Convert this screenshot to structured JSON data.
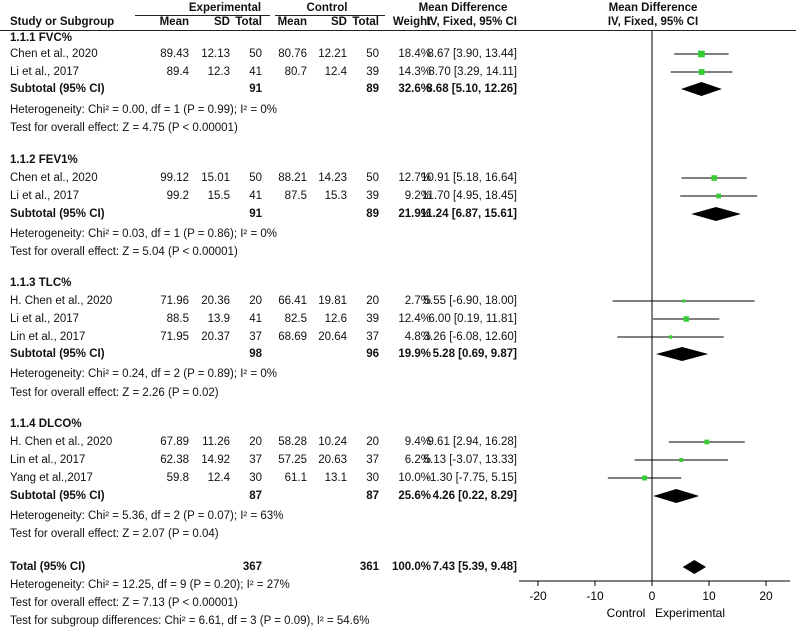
{
  "header": {
    "experimental": "Experimental",
    "control": "Control",
    "mean_difference": "Mean Difference",
    "mean_difference_plot": "Mean Difference",
    "study_col": "Study or Subgroup",
    "mean": "Mean",
    "sd": "SD",
    "total": "Total",
    "weight": "Weight",
    "method": "IV, Fixed, 95% CI",
    "method_plot": "IV, Fixed, 95% CI"
  },
  "subgroups": [
    {
      "title": "1.1.1 FVC%",
      "studies": [
        {
          "name": "Chen et al., 2020",
          "e_mean": "89.43",
          "e_sd": "12.13",
          "e_total": "50",
          "c_mean": "80.76",
          "c_sd": "12.21",
          "c_total": "50",
          "weight": "18.4%",
          "ci": "8.67 [3.90, 13.44]"
        },
        {
          "name": "Li et al., 2017",
          "e_mean": "89.4",
          "e_sd": "12.3",
          "e_total": "41",
          "c_mean": "80.7",
          "c_sd": "12.4",
          "c_total": "39",
          "weight": "14.3%",
          "ci": "8.70 [3.29, 14.11]"
        }
      ],
      "subtotal": {
        "label": "Subtotal (95% CI)",
        "e_total": "91",
        "c_total": "89",
        "weight": "32.6%",
        "ci": "8.68 [5.10, 12.26]"
      },
      "heterogeneity": "Heterogeneity: Chi² = 0.00, df = 1 (P = 0.99); I² = 0%",
      "overall": "Test for overall effect: Z = 4.75 (P < 0.00001)"
    },
    {
      "title": "1.1.2 FEV1%",
      "studies": [
        {
          "name": "Chen et al., 2020",
          "e_mean": "99.12",
          "e_sd": "15.01",
          "e_total": "50",
          "c_mean": "88.21",
          "c_sd": "14.23",
          "c_total": "50",
          "weight": "12.7%",
          "ci": "10.91 [5.18, 16.64]"
        },
        {
          "name": "Li et al., 2017",
          "e_mean": "99.2",
          "e_sd": "15.5",
          "e_total": "41",
          "c_mean": "87.5",
          "c_sd": "15.3",
          "c_total": "39",
          "weight": "9.2%",
          "ci": "11.70 [4.95, 18.45]"
        }
      ],
      "subtotal": {
        "label": "Subtotal (95% CI)",
        "e_total": "91",
        "c_total": "89",
        "weight": "21.9%",
        "ci": "11.24 [6.87, 15.61]"
      },
      "heterogeneity": "Heterogeneity: Chi² = 0.03, df = 1 (P = 0.86); I² = 0%",
      "overall": "Test for overall effect: Z = 5.04 (P < 0.00001)"
    },
    {
      "title": "1.1.3 TLC%",
      "studies": [
        {
          "name": "H. Chen  et al., 2020",
          "e_mean": "71.96",
          "e_sd": "20.36",
          "e_total": "20",
          "c_mean": "66.41",
          "c_sd": "19.81",
          "c_total": "20",
          "weight": "2.7%",
          "ci": "5.55 [-6.90, 18.00]"
        },
        {
          "name": "Li et al., 2017",
          "e_mean": "88.5",
          "e_sd": "13.9",
          "e_total": "41",
          "c_mean": "82.5",
          "c_sd": "12.6",
          "c_total": "39",
          "weight": "12.4%",
          "ci": "6.00 [0.19, 11.81]"
        },
        {
          "name": "Lin et al., 2017",
          "e_mean": "71.95",
          "e_sd": "20.37",
          "e_total": "37",
          "c_mean": "68.69",
          "c_sd": "20.64",
          "c_total": "37",
          "weight": "4.8%",
          "ci": "3.26 [-6.08, 12.60]"
        }
      ],
      "subtotal": {
        "label": "Subtotal (95% CI)",
        "e_total": "98",
        "c_total": "96",
        "weight": "19.9%",
        "ci": "5.28 [0.69, 9.87]"
      },
      "heterogeneity": "Heterogeneity: Chi² = 0.24, df = 2 (P = 0.89); I² = 0%",
      "overall": "Test for overall effect: Z = 2.26 (P = 0.02)"
    },
    {
      "title": "1.1.4 DLCO%",
      "studies": [
        {
          "name": "H. Chen  et al., 2020",
          "e_mean": "67.89",
          "e_sd": "11.26",
          "e_total": "20",
          "c_mean": "58.28",
          "c_sd": "10.24",
          "c_total": "20",
          "weight": "9.4%",
          "ci": "9.61 [2.94, 16.28]"
        },
        {
          "name": "Lin et al., 2017",
          "e_mean": "62.38",
          "e_sd": "14.92",
          "e_total": "37",
          "c_mean": "57.25",
          "c_sd": "20.63",
          "c_total": "37",
          "weight": "6.2%",
          "ci": "5.13 [-3.07, 13.33]"
        },
        {
          "name": "Yang et al.,2017",
          "e_mean": "59.8",
          "e_sd": "12.4",
          "e_total": "30",
          "c_mean": "61.1",
          "c_sd": "13.1",
          "c_total": "30",
          "weight": "10.0%",
          "ci": "-1.30 [-7.75, 5.15]"
        }
      ],
      "subtotal": {
        "label": "Subtotal (95% CI)",
        "e_total": "87",
        "c_total": "87",
        "weight": "25.6%",
        "ci": "4.26 [0.22, 8.29]"
      },
      "heterogeneity": "Heterogeneity: Chi² = 5.36, df = 2 (P = 0.07); I² = 63%",
      "overall": "Test for overall effect: Z = 2.07 (P = 0.04)"
    }
  ],
  "total": {
    "label": "Total (95% CI)",
    "e_total": "367",
    "c_total": "361",
    "weight": "100.0%",
    "ci": "7.43 [5.39, 9.48]"
  },
  "footer": {
    "heterogeneity": "Heterogeneity: Chi² = 12.25, df = 9 (P = 0.20); I² = 27%",
    "overall": "Test for overall effect: Z = 7.13 (P < 0.00001)",
    "subgroup_diff": "Test for subgroup differences: Chi² = 6.61, df = 3 (P = 0.09), I² = 54.6%"
  },
  "axis": {
    "ticks": [
      "-20",
      "-10",
      "0",
      "10",
      "20"
    ],
    "left_label": "Control",
    "right_label": "Experimental"
  },
  "colors": {
    "study_marker": "#33cc33",
    "diamond": "#000000",
    "line": "#000000"
  },
  "chart_data": {
    "type": "forest",
    "xlim": [
      -20,
      20
    ],
    "ticks": [
      -20,
      -10,
      0,
      10,
      20
    ],
    "x_label_left": "Control",
    "x_label_right": "Experimental",
    "studies": [
      {
        "name": "Chen et al., 2020",
        "subgroup": "1.1.1 FVC%",
        "md": 8.67,
        "lo": 3.9,
        "hi": 13.44,
        "weight": 18.4
      },
      {
        "name": "Li et al., 2017",
        "subgroup": "1.1.1 FVC%",
        "md": 8.7,
        "lo": 3.29,
        "hi": 14.11,
        "weight": 14.3
      },
      {
        "name": "Chen et al., 2020",
        "subgroup": "1.1.2 FEV1%",
        "md": 10.91,
        "lo": 5.18,
        "hi": 16.64,
        "weight": 12.7
      },
      {
        "name": "Li et al., 2017",
        "subgroup": "1.1.2 FEV1%",
        "md": 11.7,
        "lo": 4.95,
        "hi": 18.45,
        "weight": 9.2
      },
      {
        "name": "H. Chen  et al., 2020",
        "subgroup": "1.1.3 TLC%",
        "md": 5.55,
        "lo": -6.9,
        "hi": 18.0,
        "weight": 2.7
      },
      {
        "name": "Li et al., 2017",
        "subgroup": "1.1.3 TLC%",
        "md": 6.0,
        "lo": 0.19,
        "hi": 11.81,
        "weight": 12.4
      },
      {
        "name": "Lin et al., 2017",
        "subgroup": "1.1.3 TLC%",
        "md": 3.26,
        "lo": -6.08,
        "hi": 12.6,
        "weight": 4.8
      },
      {
        "name": "H. Chen  et al., 2020",
        "subgroup": "1.1.4 DLCO%",
        "md": 9.61,
        "lo": 2.94,
        "hi": 16.28,
        "weight": 9.4
      },
      {
        "name": "Lin et al., 2017",
        "subgroup": "1.1.4 DLCO%",
        "md": 5.13,
        "lo": -3.07,
        "hi": 13.33,
        "weight": 6.2
      },
      {
        "name": "Yang et al.,2017",
        "subgroup": "1.1.4 DLCO%",
        "md": -1.3,
        "lo": -7.75,
        "hi": 5.15,
        "weight": 10.0
      }
    ],
    "diamonds": [
      {
        "name": "Subtotal 1.1.1 FVC%",
        "md": 8.68,
        "lo": 5.1,
        "hi": 12.26
      },
      {
        "name": "Subtotal 1.1.2 FEV1%",
        "md": 11.24,
        "lo": 6.87,
        "hi": 15.61
      },
      {
        "name": "Subtotal 1.1.3 TLC%",
        "md": 5.28,
        "lo": 0.69,
        "hi": 9.87
      },
      {
        "name": "Subtotal 1.1.4 DLCO%",
        "md": 4.26,
        "lo": 0.22,
        "hi": 8.29
      },
      {
        "name": "Total",
        "md": 7.43,
        "lo": 5.39,
        "hi": 9.48
      }
    ]
  }
}
